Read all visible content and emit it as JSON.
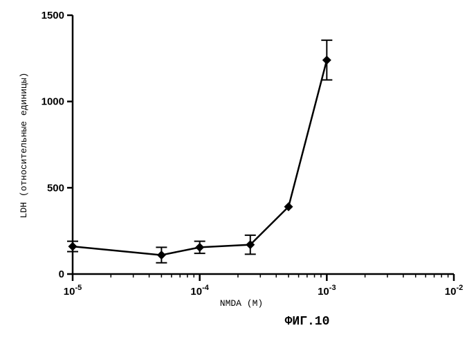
{
  "chart_data": {
    "type": "line",
    "x_scale": "log",
    "xlabel": "NMDA (M)",
    "ylabel": "LDH (относительные единицы)",
    "xlim": [
      1e-05,
      0.01
    ],
    "ylim": [
      0,
      1500
    ],
    "x_ticks": [
      {
        "base": "10",
        "exp": "-5"
      },
      {
        "base": "10",
        "exp": "-4"
      },
      {
        "base": "10",
        "exp": "-3"
      },
      {
        "base": "10",
        "exp": "-2"
      }
    ],
    "y_ticks": [
      "0",
      "500",
      "1000",
      "1500"
    ],
    "grid": false,
    "series": [
      {
        "marker": "diamond",
        "color": "#000000",
        "x": [
          1e-05,
          5e-05,
          0.0001,
          0.00025,
          0.0005,
          0.001
        ],
        "y": [
          160,
          110,
          155,
          170,
          390,
          1240
        ],
        "error": [
          30,
          45,
          35,
          55,
          0,
          115
        ]
      }
    ]
  },
  "caption": "ФИГ.10"
}
